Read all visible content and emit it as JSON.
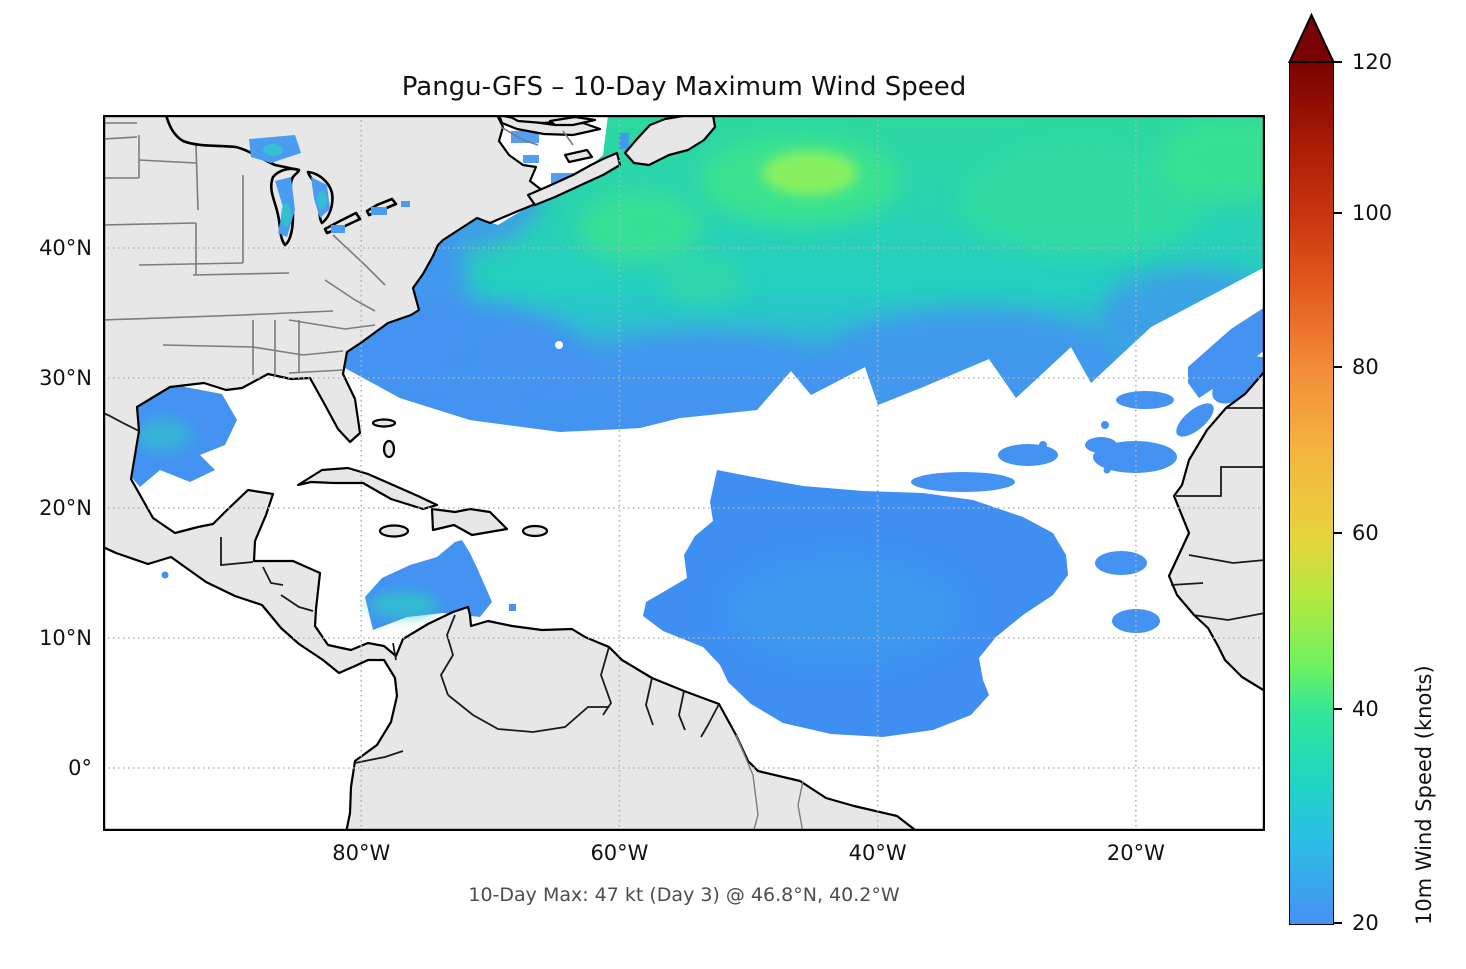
{
  "figure": {
    "title": "Pangu-GFS – 10-Day Maximum Wind Speed",
    "caption": "10-Day Max: 47 kt (Day 3) @ 46.8°N, 40.2°W"
  },
  "colors": {
    "land": "#e7e7e7",
    "coastline": "#000000",
    "state_border": "#7c7c7c",
    "country_border": "#1a1a1a",
    "ocean": "#ffffff",
    "gridline": "#b3b3b3",
    "wind_blue": "#4493f2",
    "wind_teal": "#27ccc0",
    "wind_green": "#3ce48c",
    "wind_bright_green": "#9cf455",
    "caption_gray": "#4d4d4d"
  },
  "chart_data": {
    "type": "heatmap",
    "title": "Pangu-GFS – 10-Day Maximum Wind Speed",
    "subtitle_annotation": {
      "text": "10-Day Max: 47 kt (Day 3) @ 46.8°N, 40.2°W",
      "max_value_kt": 47,
      "max_day": 3,
      "max_lat": 46.8,
      "max_lon_w": 40.2
    },
    "map_extent": {
      "lon_min": -100,
      "lon_max": -10,
      "lat_min": -5.1,
      "lat_max": 50.2
    },
    "x_ticks": [
      {
        "label": "80°W",
        "lon": -80
      },
      {
        "label": "60°W",
        "lon": -60
      },
      {
        "label": "40°W",
        "lon": -40
      },
      {
        "label": "20°W",
        "lon": -20
      }
    ],
    "y_ticks": [
      {
        "label": "40°N",
        "lat": 40
      },
      {
        "label": "30°N",
        "lat": 30
      },
      {
        "label": "20°N",
        "lat": 20
      },
      {
        "label": "10°N",
        "lat": 10
      },
      {
        "label": "0°",
        "lat": 0
      }
    ],
    "grid": {
      "visible": true,
      "style": "dotted"
    },
    "colorbar": {
      "label": "10m Wind Speed (knots)",
      "units": "knots",
      "min": 20,
      "max": 120,
      "extend": "max",
      "ticks": [
        120,
        100,
        80,
        60,
        40,
        20
      ],
      "tick_fractions_from_top": [
        0,
        0.175,
        0.354,
        0.547,
        0.752,
        1.0
      ],
      "gradient_top_to_bottom": [
        {
          "f": 0.0,
          "c": "#7a0403"
        },
        {
          "f": 0.05,
          "c": "#920e03"
        },
        {
          "f": 0.1,
          "c": "#ad1d06"
        },
        {
          "f": 0.175,
          "c": "#c93410"
        },
        {
          "f": 0.26,
          "c": "#e35a1c"
        },
        {
          "f": 0.354,
          "c": "#f28c38"
        },
        {
          "f": 0.45,
          "c": "#f4b43f"
        },
        {
          "f": 0.547,
          "c": "#e8d33c"
        },
        {
          "f": 0.62,
          "c": "#b5e83f"
        },
        {
          "f": 0.7,
          "c": "#6ff25f"
        },
        {
          "f": 0.752,
          "c": "#33e698"
        },
        {
          "f": 0.83,
          "c": "#1fd7c0"
        },
        {
          "f": 0.9,
          "c": "#2bbfe4"
        },
        {
          "f": 1.0,
          "c": "#4691f4"
        }
      ]
    },
    "threshold_note": "Areas below 20 kt are unshaded (white ocean)",
    "regions": [
      {
        "name": "north-atlantic-storm-track",
        "approx_center": {
          "lat": 42,
          "lon": -45
        },
        "description": "Broad teal-green swath 30–50°N across the North Atlantic with streaky SW-pointing fingers on its southern edge",
        "intensity_kt": [
          22,
          47
        ]
      },
      {
        "name": "us-east-coast-offshore",
        "approx_center": {
          "lat": 34,
          "lon": -73
        },
        "description": "Blue band hugging the US east coast from Florida to New England",
        "intensity_kt": [
          20,
          30
        ]
      },
      {
        "name": "gulf-of-mexico-west",
        "approx_center": {
          "lat": 25,
          "lon": -93
        },
        "description": "Blue patch with teal core in western Gulf of Mexico",
        "intensity_kt": [
          20,
          32
        ]
      },
      {
        "name": "southwest-caribbean",
        "approx_center": {
          "lat": 13.5,
          "lon": -73
        },
        "description": "Blue patch with teal core off Colombia/Venezuela",
        "intensity_kt": [
          20,
          35
        ]
      },
      {
        "name": "tropical-atlantic-trades",
        "approx_center": {
          "lat": 13,
          "lon": -37
        },
        "description": "Large near-uniform blue blob 5–20°N, 25–52°W",
        "intensity_kt": [
          20,
          27
        ]
      },
      {
        "name": "canary-current-west-africa",
        "approx_center": {
          "lat": 22,
          "lon": -19
        },
        "description": "Scattered blue patches along NW African coast",
        "intensity_kt": [
          20,
          27
        ]
      },
      {
        "name": "great-lakes",
        "approx_center": {
          "lat": 45,
          "lon": -85
        },
        "description": "Blue/teal wind patches over Lakes Superior, Michigan, Huron, Erie, Ontario",
        "intensity_kt": [
          20,
          32
        ]
      },
      {
        "name": "gulf-of-st-lawrence",
        "approx_center": {
          "lat": 47.5,
          "lon": -62
        },
        "description": "Blue patches around Nova Scotia and Gulf of St. Lawrence",
        "intensity_kt": [
          20,
          30
        ]
      }
    ]
  }
}
